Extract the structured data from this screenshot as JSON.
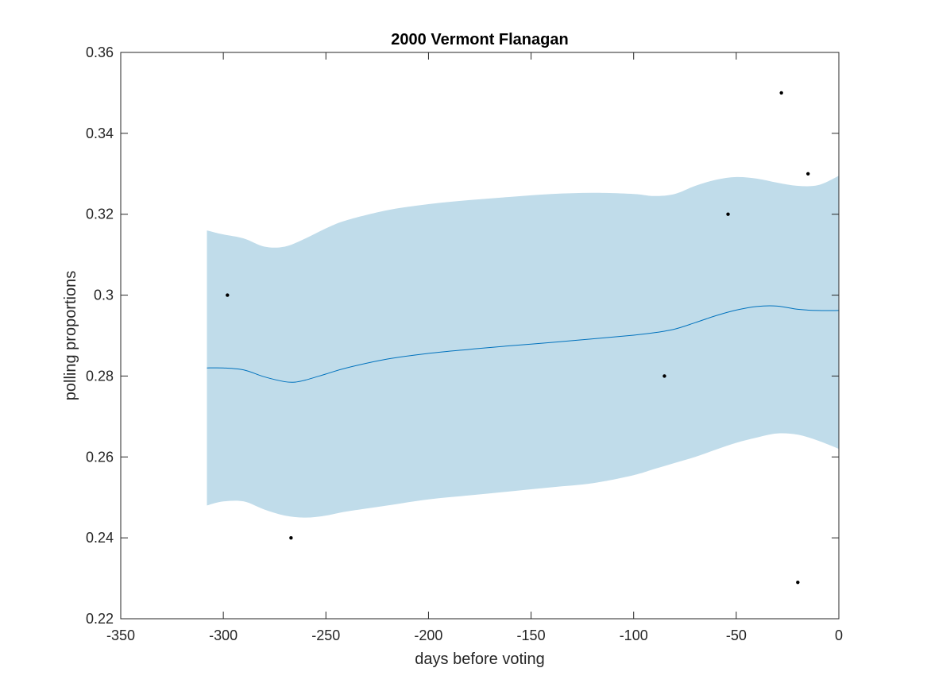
{
  "chart_data": {
    "type": "line",
    "title": "2000 Vermont Flanagan",
    "xlabel": "days before voting",
    "ylabel": "polling proportions",
    "xlim": [
      -350,
      0
    ],
    "ylim": [
      0.22,
      0.36
    ],
    "xticks": [
      -350,
      -300,
      -250,
      -200,
      -150,
      -100,
      -50,
      0
    ],
    "xtick_labels": [
      "-350",
      "-300",
      "-250",
      "-200",
      "-150",
      "-100",
      "-50",
      "0"
    ],
    "yticks": [
      0.22,
      0.24,
      0.26,
      0.28,
      0.3,
      0.32,
      0.34,
      0.36
    ],
    "ytick_labels": [
      "0.22",
      "0.24",
      "0.26",
      "0.28",
      "0.3",
      "0.32",
      "0.34",
      "0.36"
    ],
    "grid": false,
    "colors": {
      "band": "#c0dcea",
      "line": "#0072bd",
      "points": "#000000",
      "axes": "#262626"
    },
    "series": [
      {
        "kind": "band",
        "x": [
          -308,
          -300,
          -290,
          -280,
          -270,
          -260,
          -250,
          -240,
          -220,
          -200,
          -180,
          -160,
          -140,
          -120,
          -100,
          -90,
          -80,
          -70,
          -60,
          -50,
          -40,
          -30,
          -20,
          -10,
          0
        ],
        "upper": [
          0.316,
          0.315,
          0.314,
          0.312,
          0.312,
          0.314,
          0.3165,
          0.3185,
          0.321,
          0.3225,
          0.3235,
          0.3243,
          0.325,
          0.3253,
          0.325,
          0.3245,
          0.325,
          0.327,
          0.3285,
          0.3292,
          0.3288,
          0.3278,
          0.327,
          0.3272,
          0.3295
        ],
        "lower": [
          0.248,
          0.249,
          0.249,
          0.247,
          0.2455,
          0.245,
          0.2455,
          0.2465,
          0.248,
          0.2495,
          0.2505,
          0.2515,
          0.2525,
          0.2535,
          0.2555,
          0.257,
          0.2585,
          0.26,
          0.2618,
          0.2635,
          0.2648,
          0.2658,
          0.2655,
          0.264,
          0.262
        ]
      },
      {
        "kind": "line",
        "x": [
          -308,
          -300,
          -290,
          -280,
          -270,
          -265,
          -260,
          -250,
          -240,
          -220,
          -200,
          -180,
          -160,
          -140,
          -120,
          -100,
          -90,
          -80,
          -70,
          -60,
          -50,
          -40,
          -30,
          -20,
          -10,
          0
        ],
        "y": [
          0.282,
          0.282,
          0.2815,
          0.2798,
          0.2786,
          0.2785,
          0.279,
          0.2805,
          0.282,
          0.2842,
          0.2856,
          0.2866,
          0.2875,
          0.2883,
          0.2892,
          0.2901,
          0.2907,
          0.2916,
          0.2932,
          0.2949,
          0.2963,
          0.2972,
          0.2973,
          0.2965,
          0.2962,
          0.2962
        ]
      },
      {
        "kind": "scatter",
        "x": [
          -298,
          -267,
          -85,
          -54,
          -28,
          -20,
          -15
        ],
        "y": [
          0.3,
          0.24,
          0.28,
          0.32,
          0.35,
          0.229,
          0.33
        ]
      }
    ]
  }
}
